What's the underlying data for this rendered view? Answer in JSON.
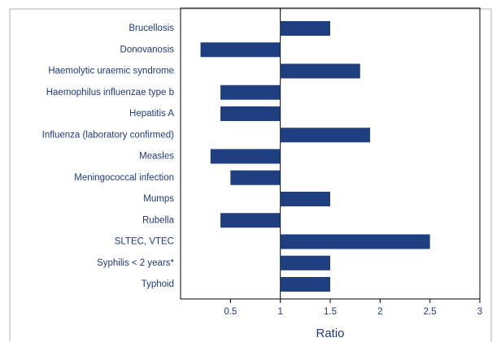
{
  "chart_data": {
    "type": "bar",
    "orientation": "horizontal",
    "categories": [
      "Brucellosis",
      "Donovanosis",
      "Haemolytic uraemic syndrome",
      "Haemophilus influenzae type b",
      "Hepatitis A",
      "Influenza (laboratory confirmed)",
      "Measles",
      "Meningococcal infection",
      "Mumps",
      "Rubella",
      "SLTEC, VTEC",
      "Syphilis < 2 years*",
      "Typhoid"
    ],
    "values": [
      1.5,
      0.2,
      1.8,
      0.4,
      0.4,
      1.9,
      0.3,
      0.5,
      1.5,
      0.4,
      2.5,
      1.5,
      1.5
    ],
    "baseline": 1,
    "color": "#1f3f80",
    "x_label": "Ratio",
    "xlim": [
      0,
      3
    ],
    "xticks": [
      0.5,
      1,
      1.5,
      2,
      2.5,
      3
    ]
  }
}
